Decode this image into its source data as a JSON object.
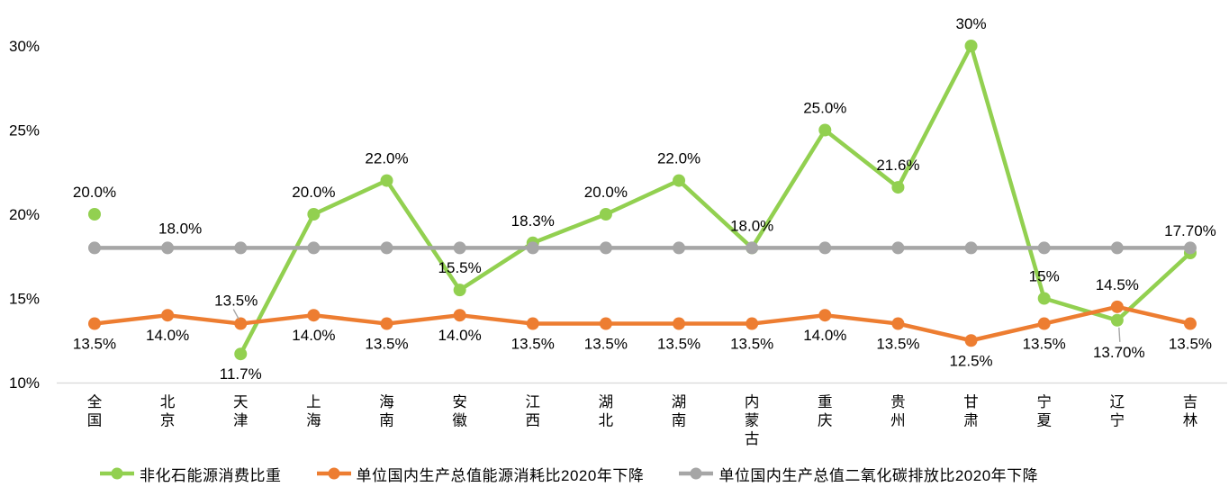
{
  "chart_data": {
    "type": "line",
    "title": "",
    "xlabel": "",
    "ylabel": "",
    "grid": false,
    "legend_position": "bottom",
    "background": "#ffffff",
    "axis_line_color": "#d9d9d9",
    "label_text_color": "#000000",
    "y_axis": {
      "min": 10,
      "max": 30,
      "ticks": [
        {
          "v": 30,
          "label": "30%"
        },
        {
          "v": 25,
          "label": "25%"
        },
        {
          "v": 20,
          "label": "20%"
        },
        {
          "v": 15,
          "label": "15%"
        },
        {
          "v": 10,
          "label": "10%"
        }
      ]
    },
    "categories": [
      "全国",
      "北京",
      "天津",
      "上海",
      "海南",
      "安徽",
      "江西",
      "湖北",
      "湖南",
      "内蒙古",
      "重庆",
      "贵州",
      "甘肃",
      "宁夏",
      "辽宁",
      "吉林"
    ],
    "series": [
      {
        "name": "非化石能源消费比重",
        "color": "#92D050",
        "values": [
          20.0,
          null,
          11.7,
          20.0,
          22.0,
          15.5,
          18.3,
          20.0,
          22.0,
          18.0,
          25.0,
          21.6,
          30,
          15,
          13.7,
          17.7
        ],
        "labels": [
          "20.0%",
          null,
          "11.7%",
          "20.0%",
          "22.0%",
          "15.5%",
          "18.3%",
          "20.0%",
          "22.0%",
          "18.0%",
          "25.0%",
          "21.6%",
          "30%",
          "15%",
          "13.70%",
          "17.70%"
        ],
        "label_pos": [
          "above",
          null,
          "below",
          "above",
          "above",
          "above",
          "above",
          "above",
          "above",
          "above",
          "above",
          "above",
          "above",
          "above",
          "below-leader",
          "above"
        ]
      },
      {
        "name": "单位国内生产总值能源消耗比2020年下降",
        "color": "#ED7D31",
        "values": [
          13.5,
          14.0,
          13.5,
          14.0,
          13.5,
          14.0,
          13.5,
          13.5,
          13.5,
          13.5,
          14.0,
          13.5,
          12.5,
          13.5,
          14.5,
          13.5
        ],
        "labels": [
          "13.5%",
          "14.0%",
          "13.5%",
          "14.0%",
          "13.5%",
          "14.0%",
          "13.5%",
          "13.5%",
          "13.5%",
          "13.5%",
          "14.0%",
          "13.5%",
          "12.5%",
          "13.5%",
          "14.5%",
          "13.5%"
        ],
        "label_pos": [
          "below",
          "below",
          "above-leader",
          "below",
          "below",
          "below",
          "below",
          "below",
          "below",
          "below",
          "below",
          "below",
          "below",
          "below",
          "above",
          "below"
        ]
      },
      {
        "name": "单位国内生产总值二氧化碳排放比2020年下降",
        "color": "#A6A6A6",
        "values": [
          18,
          18,
          18,
          18,
          18,
          18,
          18,
          18,
          18,
          18,
          18,
          18,
          18,
          18,
          18,
          18
        ],
        "labels": [
          null,
          "18.0%",
          null,
          null,
          null,
          null,
          null,
          null,
          null,
          null,
          null,
          null,
          null,
          null,
          null,
          null
        ],
        "label_pos": [
          null,
          "above-right",
          null,
          null,
          null,
          null,
          null,
          null,
          null,
          null,
          null,
          null,
          null,
          null,
          null,
          null
        ]
      }
    ]
  }
}
